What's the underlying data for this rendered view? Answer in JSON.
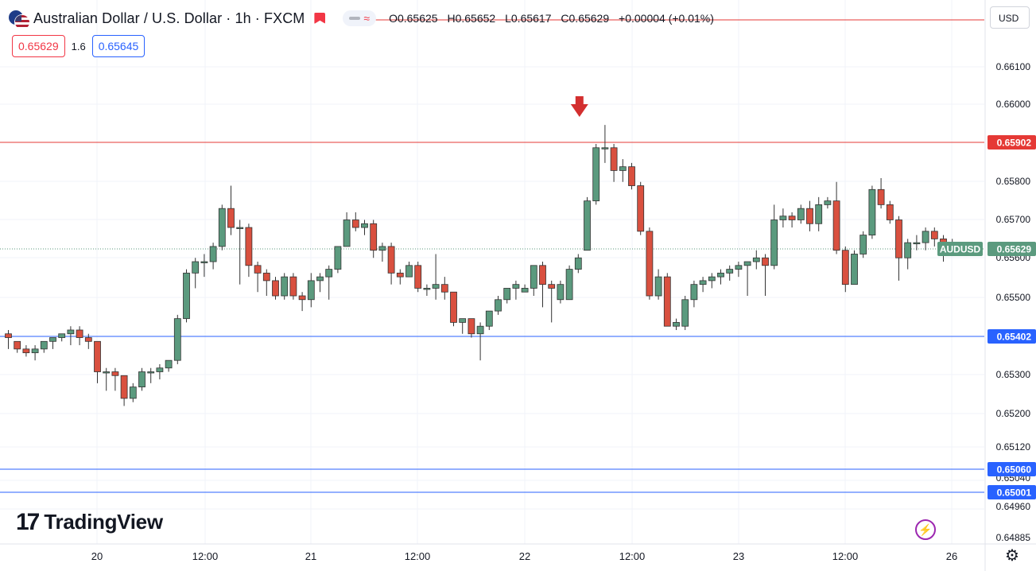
{
  "header": {
    "title": "Australian Dollar / U.S. Dollar · 1h · FXCM",
    "ohlc": {
      "o_label": "O",
      "o": "0.65625",
      "h_label": "H",
      "h": "0.65652",
      "l_label": "L",
      "l": "0.65617",
      "c_label": "C",
      "c": "0.65629",
      "change": "+0.00004 (+0.01%)"
    },
    "compare_icon": "≈"
  },
  "quotes": {
    "sell": "0.65629",
    "spread": "1.6",
    "buy": "0.65645"
  },
  "currency_button": "USD",
  "branding": {
    "logo_mark": "17",
    "logo_text": "TradingView"
  },
  "colors": {
    "up": "#5b9a7e",
    "down": "#d9503f",
    "red_line": "#e53935",
    "blue_line": "#2962ff",
    "arrow": "#d32f2f",
    "last_price_tag": "#5b9a7e"
  },
  "chart_data": {
    "type": "candlestick",
    "symbol": "AUDUSD",
    "last_price": 0.65629,
    "y_ticks": [
      0.661,
      0.66,
      0.659,
      0.658,
      0.657,
      0.656,
      0.655,
      0.653,
      0.652,
      0.6512,
      0.6504,
      0.6496,
      0.64885
    ],
    "y_tick_labels": [
      "0.66100",
      "0.66000",
      "0.65900",
      "0.65800",
      "0.65700",
      "0.65600",
      "0.65500",
      "0.65300",
      "0.65200",
      "0.65120",
      "0.65040",
      "0.64960",
      "0.64885"
    ],
    "x_ticks": [
      "20",
      "12:00",
      "21",
      "12:00",
      "22",
      "12:00",
      "23",
      "12:00",
      "26"
    ],
    "horizontal_lines": [
      {
        "price": 0.65902,
        "label": "0.65902",
        "color": "red"
      },
      {
        "price": 0.65402,
        "label": "0.65402",
        "color": "blue"
      },
      {
        "price": 0.6506,
        "label": "0.65060",
        "color": "blue"
      },
      {
        "price": 0.65001,
        "label": "0.65001",
        "color": "blue"
      }
    ],
    "arrow_annotation": {
      "type": "down-arrow",
      "candle_index": 64
    },
    "candles": [
      [
        0.654,
        0.6539,
        0.6536,
        0.6541
      ],
      [
        0.6538,
        0.6536,
        0.6535,
        0.6538
      ],
      [
        0.6536,
        0.6535,
        0.6534,
        0.6537
      ],
      [
        0.6535,
        0.6536,
        0.6533,
        0.6537
      ],
      [
        0.6536,
        0.6538,
        0.6535,
        0.6538
      ],
      [
        0.6538,
        0.6539,
        0.6536,
        0.6539
      ],
      [
        0.6539,
        0.654,
        0.6538,
        0.654
      ],
      [
        0.654,
        0.6541,
        0.6537,
        0.6542
      ],
      [
        0.6541,
        0.6539,
        0.6537,
        0.6542
      ],
      [
        0.6539,
        0.6538,
        0.6536,
        0.654
      ],
      [
        0.6538,
        0.653,
        0.6527,
        0.6538
      ],
      [
        0.653,
        0.653,
        0.6525,
        0.6531
      ],
      [
        0.653,
        0.6529,
        0.6525,
        0.6531
      ],
      [
        0.6529,
        0.6523,
        0.6521,
        0.6529
      ],
      [
        0.6523,
        0.6526,
        0.6522,
        0.6527
      ],
      [
        0.6526,
        0.653,
        0.6525,
        0.6531
      ],
      [
        0.653,
        0.653,
        0.6527,
        0.6531
      ],
      [
        0.653,
        0.6531,
        0.6528,
        0.6532
      ],
      [
        0.6531,
        0.6533,
        0.653,
        0.6533
      ],
      [
        0.6533,
        0.6544,
        0.6532,
        0.6545
      ],
      [
        0.6544,
        0.6556,
        0.6543,
        0.6557
      ],
      [
        0.6556,
        0.6559,
        0.6552,
        0.656
      ],
      [
        0.6559,
        0.6559,
        0.6555,
        0.6561
      ],
      [
        0.6559,
        0.6563,
        0.6557,
        0.6564
      ],
      [
        0.6563,
        0.6573,
        0.6562,
        0.6574
      ],
      [
        0.6573,
        0.6568,
        0.6566,
        0.6579
      ],
      [
        0.6568,
        0.6568,
        0.6553,
        0.657
      ],
      [
        0.6568,
        0.6558,
        0.6555,
        0.6569
      ],
      [
        0.6558,
        0.6556,
        0.6551,
        0.6559
      ],
      [
        0.6556,
        0.6554,
        0.655,
        0.6557
      ],
      [
        0.6554,
        0.655,
        0.6549,
        0.6555
      ],
      [
        0.655,
        0.6555,
        0.6549,
        0.6556
      ],
      [
        0.6555,
        0.655,
        0.6549,
        0.6556
      ],
      [
        0.655,
        0.6549,
        0.6546,
        0.6551
      ],
      [
        0.6549,
        0.6554,
        0.6547,
        0.6556
      ],
      [
        0.6554,
        0.6555,
        0.6551,
        0.6556
      ],
      [
        0.6555,
        0.6557,
        0.6549,
        0.6558
      ],
      [
        0.6557,
        0.6563,
        0.6556,
        0.6563
      ],
      [
        0.6563,
        0.657,
        0.6563,
        0.6572
      ],
      [
        0.657,
        0.6568,
        0.6567,
        0.6572
      ],
      [
        0.6568,
        0.6569,
        0.6566,
        0.657
      ],
      [
        0.6569,
        0.6562,
        0.656,
        0.657
      ],
      [
        0.6562,
        0.6563,
        0.6559,
        0.6564
      ],
      [
        0.6563,
        0.6556,
        0.6553,
        0.6564
      ],
      [
        0.6556,
        0.6555,
        0.6553,
        0.6557
      ],
      [
        0.6555,
        0.6558,
        0.6555,
        0.6559
      ],
      [
        0.6558,
        0.6552,
        0.6551,
        0.6559
      ],
      [
        0.6552,
        0.6552,
        0.655,
        0.6553
      ],
      [
        0.6552,
        0.6553,
        0.6549,
        0.6561
      ],
      [
        0.6553,
        0.6551,
        0.6549,
        0.6555
      ],
      [
        0.6551,
        0.6543,
        0.6542,
        0.6551
      ],
      [
        0.6543,
        0.6544,
        0.654,
        0.6544
      ],
      [
        0.6544,
        0.654,
        0.6539,
        0.6544
      ],
      [
        0.654,
        0.6542,
        0.6533,
        0.6543
      ],
      [
        0.6542,
        0.6546,
        0.6541,
        0.6546
      ],
      [
        0.6546,
        0.6549,
        0.6545,
        0.655
      ],
      [
        0.6549,
        0.6552,
        0.6548,
        0.6552
      ],
      [
        0.6552,
        0.6553,
        0.6549,
        0.6554
      ],
      [
        0.6551,
        0.6552,
        0.6551,
        0.6553
      ],
      [
        0.6552,
        0.6558,
        0.655,
        0.6558
      ],
      [
        0.6558,
        0.6553,
        0.6547,
        0.6559
      ],
      [
        0.6553,
        0.6552,
        0.6543,
        0.6554
      ],
      [
        0.6549,
        0.6553,
        0.6548,
        0.6554
      ],
      [
        0.6549,
        0.6557,
        0.6549,
        0.6558
      ],
      [
        0.6557,
        0.656,
        0.6556,
        0.6561
      ],
      [
        0.6562,
        0.6575,
        0.6562,
        0.6576
      ],
      [
        0.6575,
        0.6589,
        0.6574,
        0.659
      ],
      [
        0.6589,
        0.6589,
        0.6585,
        0.6595
      ],
      [
        0.6589,
        0.6583,
        0.658,
        0.659
      ],
      [
        0.6583,
        0.6584,
        0.658,
        0.6586
      ],
      [
        0.6584,
        0.6579,
        0.6578,
        0.6585
      ],
      [
        0.6579,
        0.6567,
        0.6566,
        0.658
      ],
      [
        0.6567,
        0.655,
        0.6549,
        0.6568
      ],
      [
        0.655,
        0.6555,
        0.6549,
        0.6557
      ],
      [
        0.6555,
        0.6542,
        0.6542,
        0.6556
      ],
      [
        0.6542,
        0.6543,
        0.6541,
        0.6544
      ],
      [
        0.6542,
        0.6549,
        0.6541,
        0.655
      ],
      [
        0.6549,
        0.6553,
        0.6547,
        0.6554
      ],
      [
        0.6553,
        0.6554,
        0.6551,
        0.6555
      ],
      [
        0.6554,
        0.6555,
        0.6552,
        0.6556
      ],
      [
        0.6555,
        0.6556,
        0.6553,
        0.6557
      ],
      [
        0.6556,
        0.6557,
        0.6554,
        0.6558
      ],
      [
        0.6557,
        0.6558,
        0.6555,
        0.6559
      ],
      [
        0.6558,
        0.6559,
        0.655,
        0.6559
      ],
      [
        0.6559,
        0.656,
        0.6557,
        0.6562
      ],
      [
        0.656,
        0.6558,
        0.655,
        0.6561
      ],
      [
        0.6558,
        0.657,
        0.6557,
        0.6574
      ],
      [
        0.657,
        0.6571,
        0.6568,
        0.6573
      ],
      [
        0.6571,
        0.657,
        0.6568,
        0.6572
      ],
      [
        0.657,
        0.6573,
        0.6569,
        0.6574
      ],
      [
        0.6573,
        0.6569,
        0.6567,
        0.6575
      ],
      [
        0.6569,
        0.6574,
        0.6567,
        0.6576
      ],
      [
        0.6574,
        0.6575,
        0.6573,
        0.6576
      ],
      [
        0.6575,
        0.6562,
        0.6561,
        0.658
      ],
      [
        0.6562,
        0.6553,
        0.6551,
        0.6563
      ],
      [
        0.6553,
        0.6561,
        0.6553,
        0.6562
      ],
      [
        0.6561,
        0.6566,
        0.656,
        0.6567
      ],
      [
        0.6566,
        0.6578,
        0.6565,
        0.6579
      ],
      [
        0.6578,
        0.6574,
        0.6573,
        0.6581
      ],
      [
        0.6574,
        0.657,
        0.6569,
        0.6575
      ],
      [
        0.657,
        0.656,
        0.6554,
        0.6571
      ],
      [
        0.656,
        0.6564,
        0.6557,
        0.6565
      ],
      [
        0.6564,
        0.6564,
        0.6562,
        0.6566
      ],
      [
        0.6564,
        0.6567,
        0.6562,
        0.6568
      ],
      [
        0.6567,
        0.6565,
        0.6563,
        0.6568
      ],
      [
        0.6565,
        0.6562,
        0.6559,
        0.6566
      ],
      [
        0.6562,
        0.6563,
        0.6561,
        0.6565
      ]
    ]
  }
}
